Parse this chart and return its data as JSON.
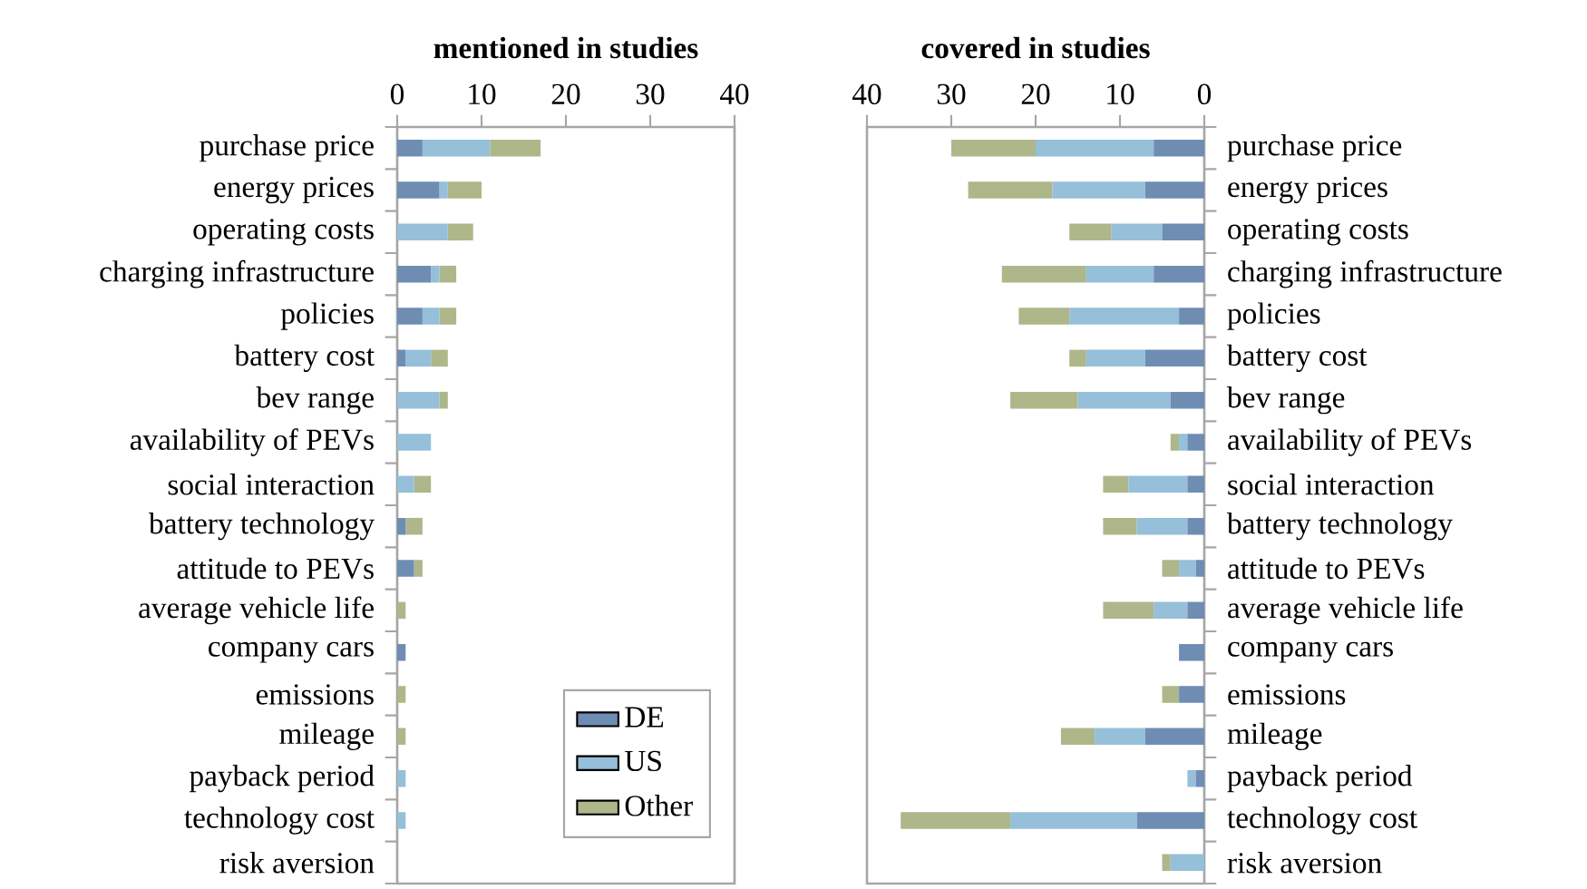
{
  "chart_data": [
    {
      "type": "bar",
      "orientation": "horizontal",
      "stacked": true,
      "title": "mentioned in studies",
      "categories": [
        "purchase price",
        "energy prices",
        "operating costs",
        "charging infrastructure",
        "policies",
        "battery cost",
        "bev range",
        "availability of PEVs",
        "social interaction",
        "battery technology",
        "attitude to PEVs",
        "average vehicle life",
        "company cars",
        "emissions",
        "mileage",
        "payback period",
        "technology cost",
        "risk aversion"
      ],
      "series": [
        {
          "name": "DE",
          "color": "#6f8db3",
          "values": [
            3,
            5,
            0,
            4,
            3,
            1,
            0,
            0,
            0,
            1,
            2,
            0,
            1,
            0,
            0,
            0,
            0,
            0
          ]
        },
        {
          "name": "US",
          "color": "#96bfd9",
          "values": [
            8,
            1,
            6,
            1,
            2,
            3,
            5,
            4,
            2,
            0,
            0,
            0,
            0,
            0,
            0,
            1,
            1,
            0
          ]
        },
        {
          "name": "Other",
          "color": "#adb78a",
          "values": [
            6,
            4,
            3,
            2,
            2,
            2,
            1,
            0,
            2,
            2,
            1,
            1,
            0,
            1,
            1,
            0,
            0,
            0
          ]
        }
      ],
      "xlim": [
        0,
        40
      ],
      "xticks": [
        0,
        10,
        20,
        30,
        40
      ],
      "legend": "bottom right",
      "grid": false
    },
    {
      "type": "bar",
      "orientation": "horizontal",
      "stacked": true,
      "title": "covered in studies",
      "categories": [
        "purchase price",
        "energy prices",
        "operating costs",
        "charging infrastructure",
        "policies",
        "battery cost",
        "bev range",
        "availability of PEVs",
        "social interaction",
        "battery technology",
        "attitude to PEVs",
        "average vehicle life",
        "company cars",
        "emissions",
        "mileage",
        "payback period",
        "technology cost",
        "risk aversion"
      ],
      "series": [
        {
          "color": "#6f8db3",
          "values": [
            6,
            7,
            5,
            6,
            3,
            7,
            4,
            2,
            2,
            2,
            1,
            2,
            3,
            3,
            7,
            1,
            8,
            0
          ]
        },
        {
          "color": "#96bfd9",
          "values": [
            14,
            11,
            6,
            8,
            13,
            7,
            11,
            1,
            7,
            6,
            2,
            4,
            0,
            0,
            6,
            1,
            15,
            4
          ]
        },
        {
          "color": "#adb78a",
          "values": [
            10,
            10,
            5,
            10,
            6,
            2,
            8,
            1,
            3,
            4,
            2,
            6,
            0,
            2,
            4,
            0,
            13,
            1
          ]
        }
      ],
      "xlim": [
        40,
        0
      ],
      "xticks": [
        40,
        30,
        20,
        10,
        0
      ],
      "grid": false
    }
  ]
}
